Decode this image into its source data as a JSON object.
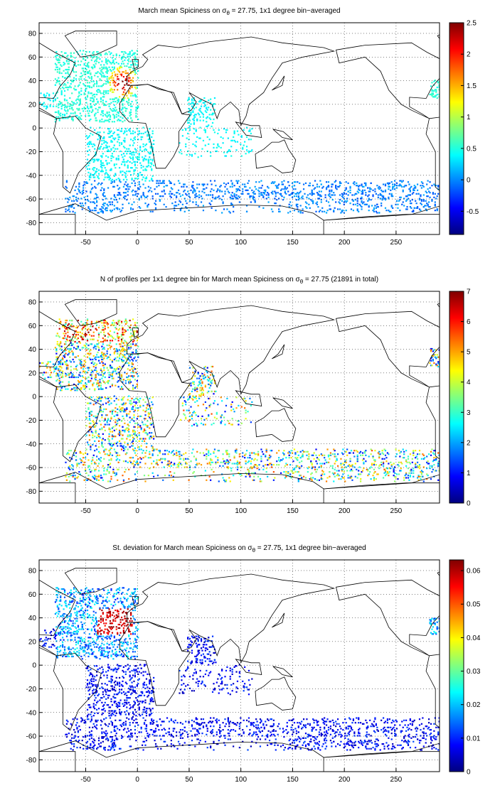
{
  "chart_data": [
    {
      "type": "map",
      "title": {
        "before": "March mean Spiciness on σ",
        "subscript": "θ",
        "after": " = 27.75, 1x1 degree bin−averaged"
      },
      "xlim": [
        -95,
        292
      ],
      "ylim": [
        -90,
        89
      ],
      "xticks": [
        -50,
        0,
        50,
        100,
        150,
        200,
        250
      ],
      "yticks": [
        -80,
        -60,
        -40,
        -20,
        0,
        20,
        40,
        60,
        80
      ],
      "grid": true,
      "colorbar": {
        "colormap": "jet",
        "clim": [
          -0.87,
          2.5
        ],
        "ticks": [
          -0.5,
          0,
          0.5,
          1,
          1.5,
          2,
          2.5
        ]
      }
    },
    {
      "type": "map",
      "title": {
        "before": "N of profiles per 1x1 degree bin for March mean Spiciness on σ",
        "subscript": "θ",
        "after": " = 27.75 (21891 in total)"
      },
      "xlim": [
        -95,
        292
      ],
      "ylim": [
        -90,
        89
      ],
      "xticks": [
        -50,
        0,
        50,
        100,
        150,
        200,
        250
      ],
      "yticks": [
        -80,
        -60,
        -40,
        -20,
        0,
        20,
        40,
        60,
        80
      ],
      "grid": true,
      "colorbar": {
        "colormap": "jet",
        "clim": [
          0,
          7
        ],
        "ticks": [
          0,
          1,
          2,
          3,
          4,
          5,
          6,
          7
        ]
      }
    },
    {
      "type": "map",
      "title": {
        "before": "St. deviation for March mean Spiciness on σ",
        "subscript": "θ",
        "after": " = 27.75, 1x1 degree bin−averaged"
      },
      "xlim": [
        -95,
        292
      ],
      "ylim": [
        -90,
        89
      ],
      "xticks": [
        -50,
        0,
        50,
        100,
        150,
        200,
        250
      ],
      "yticks": [
        -80,
        -60,
        -40,
        -20,
        0,
        20,
        40,
        60,
        80
      ],
      "grid": true,
      "colorbar": {
        "colormap": "jet",
        "clim": [
          0,
          0.0632
        ],
        "ticks": [
          0,
          0.01,
          0.02,
          0.03,
          0.04,
          0.05,
          0.06
        ]
      }
    }
  ]
}
